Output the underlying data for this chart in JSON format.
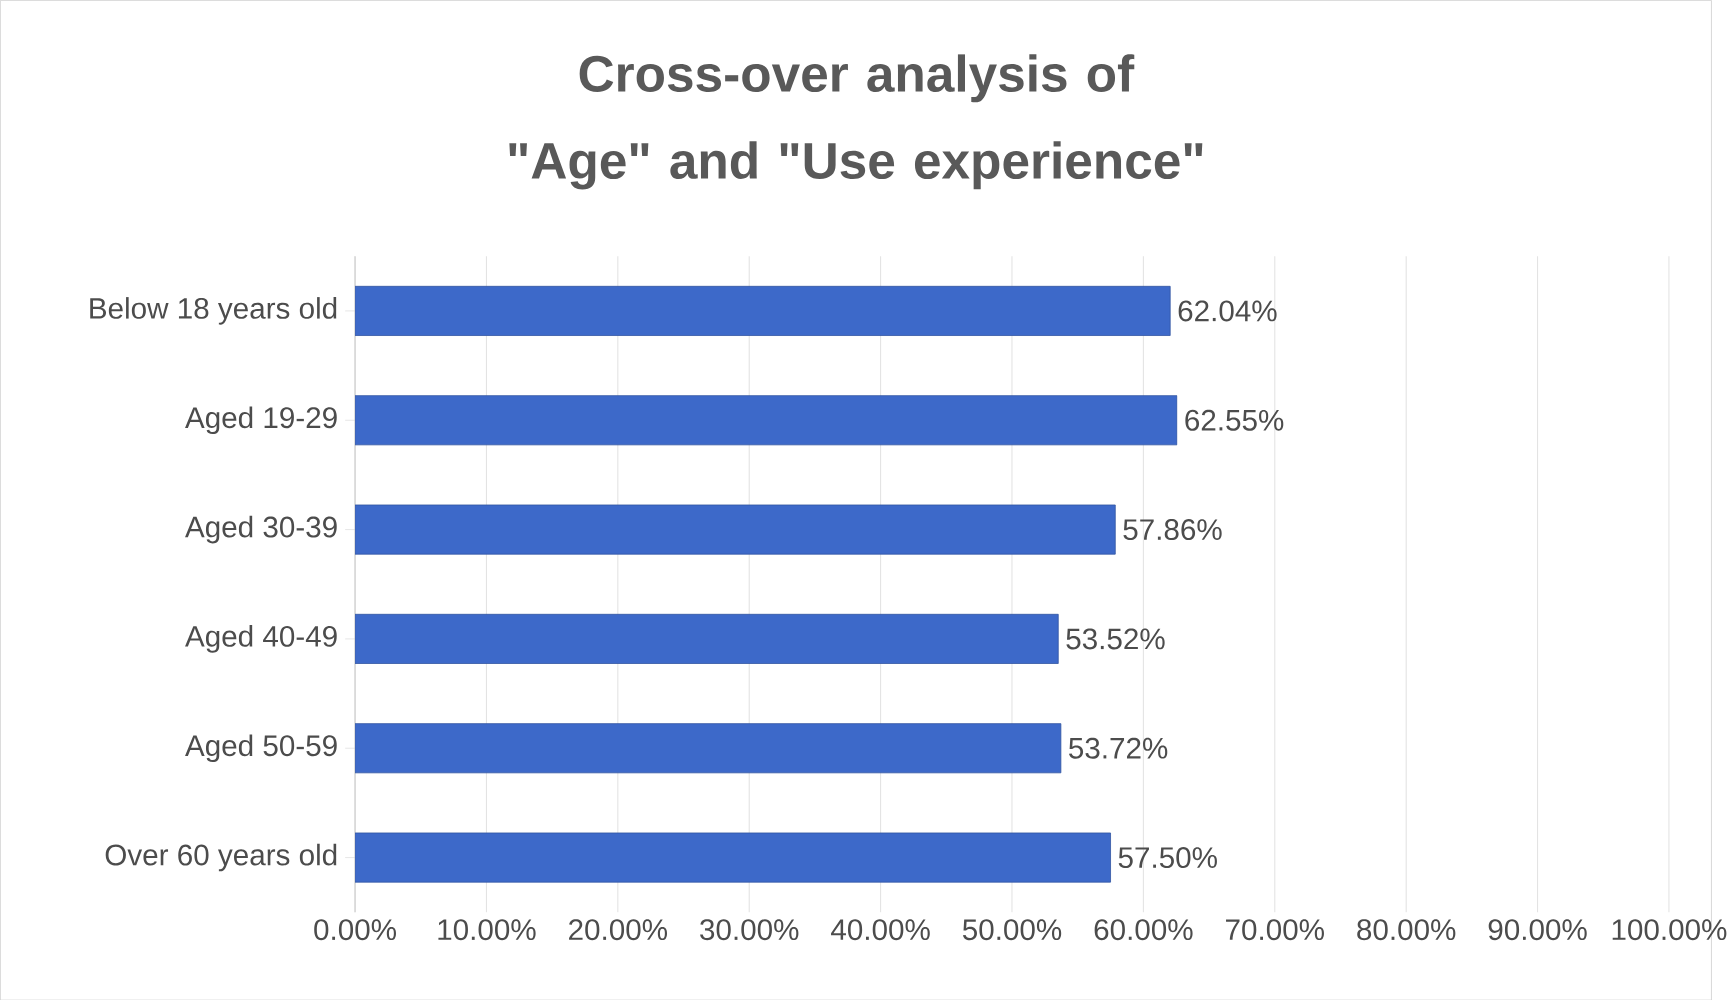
{
  "chart_data": {
    "type": "bar",
    "orientation": "horizontal",
    "title": "Cross-over analysis of \"Age\" and \"Use experience\"",
    "categories": [
      "Below 18 years old",
      "Aged 19-29",
      "Aged 30-39",
      "Aged 40-49",
      "Aged 50-59",
      "Over 60 years old"
    ],
    "values": [
      62.04,
      62.55,
      57.86,
      53.52,
      53.72,
      57.5
    ],
    "value_labels": [
      "62.04%",
      "62.55%",
      "57.86%",
      "53.52%",
      "53.72%",
      "57.50%"
    ],
    "color": "#3d69c9",
    "xlim": [
      0,
      100
    ],
    "xticks": [
      {
        "value": 0,
        "label": "0.00%"
      },
      {
        "value": 10,
        "label": "10.00%"
      },
      {
        "value": 20,
        "label": "20.00%"
      },
      {
        "value": 30,
        "label": "30.00%"
      },
      {
        "value": 40,
        "label": "40.00%"
      },
      {
        "value": 50,
        "label": "50.00%"
      },
      {
        "value": 60,
        "label": "60.00%"
      },
      {
        "value": 70,
        "label": "70.00%"
      },
      {
        "value": 80,
        "label": "80.00%"
      },
      {
        "value": 90,
        "label": "90.00%"
      },
      {
        "value": 100,
        "label": "100.00%"
      }
    ],
    "grid": "x"
  }
}
